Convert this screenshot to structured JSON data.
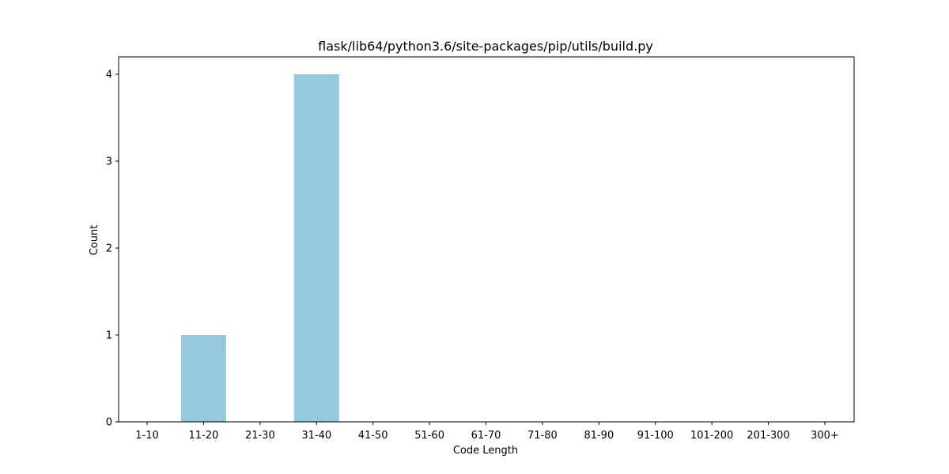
{
  "chart_data": {
    "type": "bar",
    "title": "flask/lib64/python3.6/site-packages/pip/utils/build.py",
    "xlabel": "Code Length",
    "ylabel": "Count",
    "categories": [
      "1-10",
      "11-20",
      "21-30",
      "31-40",
      "41-50",
      "51-60",
      "61-70",
      "71-80",
      "81-90",
      "91-100",
      "101-200",
      "201-300",
      "300+"
    ],
    "values": [
      0,
      1,
      0,
      4,
      0,
      0,
      0,
      0,
      0,
      0,
      0,
      0,
      0
    ],
    "yticks": [
      0,
      1,
      2,
      3,
      4
    ],
    "ylim": [
      0,
      4.2
    ],
    "grid": false,
    "bar_color": "#96c9dd"
  }
}
